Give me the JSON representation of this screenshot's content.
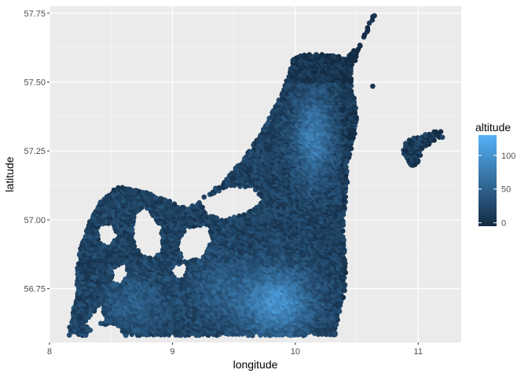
{
  "chart_data": {
    "type": "scatter",
    "title": "",
    "xlabel": "longitude",
    "ylabel": "latitude",
    "xlim": [
      8.0,
      11.35
    ],
    "ylim": [
      56.555,
      57.775
    ],
    "x_ticks": [
      8,
      9,
      10,
      11
    ],
    "x_tick_labels": [
      "8",
      "9",
      "10",
      "11"
    ],
    "y_ticks": [
      56.75,
      57.0,
      57.25,
      57.5,
      57.75
    ],
    "y_tick_labels": [
      "56.75",
      "57.00",
      "57.25",
      "57.50",
      "57.75"
    ],
    "grid": true,
    "legend": {
      "title": "altitude",
      "position": "right",
      "type": "colorbar",
      "range": [
        -5,
        130
      ],
      "ticks": [
        0,
        50,
        100
      ],
      "tick_labels": [
        "0",
        "50",
        "100"
      ],
      "low_color": "#132B43",
      "high_color": "#56B1F7"
    },
    "regions": [
      {
        "outline": [
          [
            10.4,
            57.59
          ],
          [
            10.52,
            57.63
          ],
          [
            10.58,
            57.69
          ],
          [
            10.62,
            57.74
          ],
          [
            10.66,
            57.75
          ],
          [
            10.61,
            57.7
          ],
          [
            10.56,
            57.66
          ],
          [
            10.51,
            57.6
          ],
          [
            10.46,
            57.55
          ],
          [
            10.46,
            57.48
          ],
          [
            10.49,
            57.42
          ],
          [
            10.5,
            57.36
          ],
          [
            10.48,
            57.3
          ],
          [
            10.43,
            57.2
          ],
          [
            10.42,
            57.1
          ],
          [
            10.39,
            57.0
          ],
          [
            10.4,
            56.9
          ],
          [
            10.41,
            56.81
          ],
          [
            10.4,
            56.73
          ],
          [
            10.35,
            56.65
          ],
          [
            10.33,
            56.58
          ],
          [
            10.05,
            56.58
          ],
          [
            9.75,
            56.58
          ],
          [
            9.4,
            56.58
          ],
          [
            9.1,
            56.58
          ],
          [
            8.85,
            56.58
          ],
          [
            8.62,
            56.58
          ],
          [
            8.55,
            56.62
          ],
          [
            8.4,
            56.62
          ],
          [
            8.3,
            56.58
          ],
          [
            8.16,
            56.58
          ],
          [
            8.17,
            56.65
          ],
          [
            8.22,
            56.72
          ],
          [
            8.22,
            56.8
          ],
          [
            8.25,
            56.9
          ],
          [
            8.33,
            57.0
          ],
          [
            8.42,
            57.07
          ],
          [
            8.55,
            57.12
          ],
          [
            8.72,
            57.11
          ],
          [
            8.92,
            57.08
          ],
          [
            9.12,
            57.04
          ],
          [
            9.22,
            57.07
          ],
          [
            9.42,
            57.14
          ],
          [
            9.58,
            57.22
          ],
          [
            9.72,
            57.32
          ],
          [
            9.86,
            57.43
          ],
          [
            9.95,
            57.53
          ],
          [
            9.98,
            57.58
          ],
          [
            10.05,
            57.6
          ],
          [
            10.25,
            57.6
          ]
        ]
      },
      {
        "outline": [
          [
            10.88,
            57.27
          ],
          [
            10.95,
            57.3
          ],
          [
            11.02,
            57.3
          ],
          [
            11.1,
            57.32
          ],
          [
            11.19,
            57.32
          ],
          [
            11.2,
            57.3
          ],
          [
            11.14,
            57.29
          ],
          [
            11.08,
            57.27
          ],
          [
            11.03,
            57.25
          ],
          [
            10.99,
            57.2
          ],
          [
            10.95,
            57.19
          ],
          [
            10.92,
            57.21
          ],
          [
            10.88,
            57.24
          ]
        ]
      }
    ],
    "holes": [
      {
        "outline": [
          [
            8.78,
            57.05
          ],
          [
            8.9,
            56.98
          ],
          [
            8.92,
            56.9
          ],
          [
            8.86,
            56.86
          ],
          [
            8.74,
            56.87
          ],
          [
            8.68,
            56.93
          ],
          [
            8.7,
            57.02
          ]
        ]
      },
      {
        "outline": [
          [
            9.12,
            56.97
          ],
          [
            9.3,
            56.98
          ],
          [
            9.32,
            56.92
          ],
          [
            9.24,
            56.86
          ],
          [
            9.1,
            56.85
          ],
          [
            9.05,
            56.9
          ],
          [
            9.08,
            56.95
          ]
        ]
      },
      {
        "outline": [
          [
            9.22,
            57.07
          ],
          [
            9.45,
            57.12
          ],
          [
            9.65,
            57.12
          ],
          [
            9.75,
            57.07
          ],
          [
            9.6,
            57.02
          ],
          [
            9.4,
            57.0
          ],
          [
            9.28,
            57.02
          ]
        ]
      },
      {
        "outline": [
          [
            8.4,
            56.98
          ],
          [
            8.52,
            56.98
          ],
          [
            8.56,
            56.94
          ],
          [
            8.48,
            56.9
          ],
          [
            8.4,
            56.92
          ]
        ]
      },
      {
        "outline": [
          [
            8.52,
            56.82
          ],
          [
            8.62,
            56.84
          ],
          [
            8.64,
            56.8
          ],
          [
            8.58,
            56.76
          ],
          [
            8.5,
            56.78
          ]
        ]
      },
      {
        "outline": [
          [
            8.28,
            56.62
          ],
          [
            8.42,
            56.7
          ],
          [
            8.45,
            56.64
          ],
          [
            8.36,
            56.6
          ]
        ]
      },
      {
        "outline": [
          [
            9.0,
            56.83
          ],
          [
            9.12,
            56.85
          ],
          [
            9.1,
            56.79
          ],
          [
            9.02,
            56.78
          ]
        ]
      }
    ],
    "outliers": [
      {
        "lon": 10.63,
        "lat": 57.485,
        "altitude": 5
      }
    ]
  }
}
